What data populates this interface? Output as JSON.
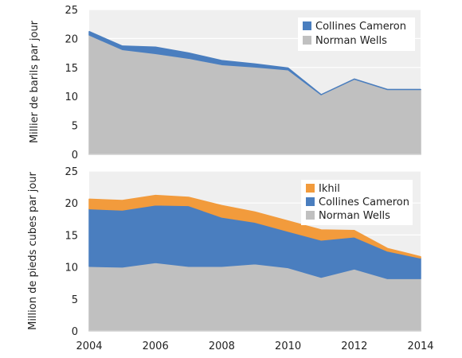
{
  "chart_data": [
    {
      "type": "area",
      "stacked": true,
      "ylabel": "Millier de barils par jour",
      "ylim": [
        0,
        25
      ],
      "yticks": [
        0,
        5,
        10,
        15,
        20,
        25
      ],
      "grid": "horizontal",
      "legend_position": "top-right",
      "x": [
        2004,
        2005,
        2006,
        2007,
        2008,
        2009,
        2010,
        2011,
        2012,
        2013,
        2014
      ],
      "series": [
        {
          "name": "Norman Wells",
          "color": "#c0c0c0",
          "values": [
            20.6,
            18.1,
            17.4,
            16.6,
            15.5,
            15.1,
            14.6,
            10.3,
            13.0,
            11.2,
            11.2
          ]
        },
        {
          "name": "Collines Cameron",
          "color": "#4a7ebf",
          "values": [
            0.6,
            0.6,
            1.1,
            0.9,
            0.7,
            0.5,
            0.3,
            0.0,
            0.0,
            0.0,
            0.0
          ]
        }
      ]
    },
    {
      "type": "area",
      "stacked": true,
      "ylabel": "Million de pieds cubes par jour",
      "xlabel": "",
      "ylim": [
        0,
        25
      ],
      "yticks": [
        0,
        5,
        10,
        15,
        20,
        25
      ],
      "xticks": [
        2004,
        2006,
        2008,
        2010,
        2012,
        2014
      ],
      "grid": "horizontal",
      "legend_position": "top-right",
      "x": [
        2004,
        2005,
        2006,
        2007,
        2008,
        2009,
        2010,
        2011,
        2012,
        2013,
        2014
      ],
      "series": [
        {
          "name": "Norman Wells",
          "color": "#c0c0c0",
          "values": [
            10.1,
            10.0,
            10.7,
            10.1,
            10.1,
            10.5,
            9.9,
            8.4,
            9.7,
            8.2,
            8.2
          ]
        },
        {
          "name": "Collines Cameron",
          "color": "#4a7ebf",
          "values": [
            9.0,
            8.9,
            9.0,
            9.5,
            7.7,
            6.5,
            5.7,
            5.8,
            5.0,
            4.3,
            3.2
          ]
        },
        {
          "name": "Ikhil",
          "color": "#f29b3c",
          "values": [
            1.5,
            1.5,
            1.5,
            1.3,
            1.8,
            1.6,
            1.6,
            1.6,
            1.0,
            0.4,
            0.2
          ]
        }
      ]
    }
  ]
}
